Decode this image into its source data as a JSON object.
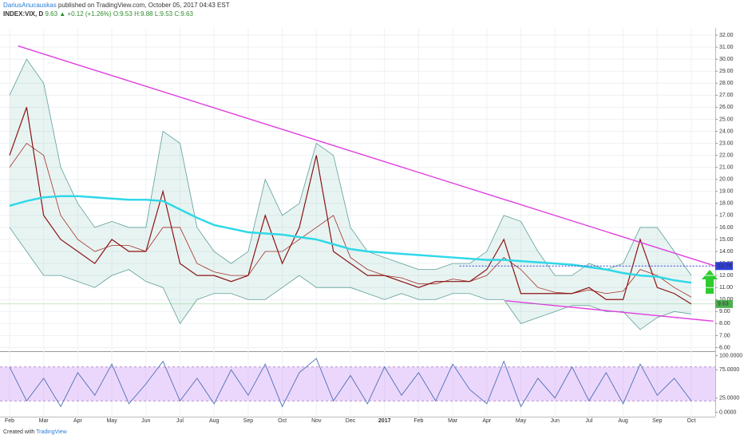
{
  "header": {
    "author": "DariusAnucauskas",
    "published": " published on TradingView.com, October 05, 2017 04:43 EST",
    "symbol": "INDEX:VIX, D",
    "last": "9.63",
    "change": "▲ +0.12 (+1.26%)",
    "open": "O:9.53",
    "high": "H:9.88",
    "low": "L:9.53",
    "close": "C:9.63"
  },
  "footer": {
    "text": "Created with",
    "brand": "TradingView"
  },
  "chart_data": [
    {
      "type": "line",
      "categories": [
        "Feb",
        null,
        "Mar",
        null,
        "Apr",
        null,
        "May",
        null,
        "Jun",
        null,
        "Jul",
        null,
        "Aug",
        null,
        "Sep",
        null,
        "Oct",
        null,
        "Nov",
        null,
        "Dec",
        null,
        "2017",
        null,
        "Feb",
        null,
        "Mar",
        null,
        "Apr",
        null,
        "May",
        null,
        "Jun",
        null,
        "Jul",
        null,
        "Aug",
        null,
        "Sep",
        null,
        "Oct"
      ],
      "ylim": [
        5.7,
        32.6
      ],
      "yticks": [
        {
          "value": 6,
          "label": "6.00"
        },
        {
          "value": 7,
          "label": "7.00"
        },
        {
          "value": 8,
          "label": "8.00"
        },
        {
          "value": 9,
          "label": "9.00"
        },
        {
          "value": 10,
          "label": "10.00"
        },
        {
          "value": 11,
          "label": "11.00"
        },
        {
          "value": 12,
          "label": "12.00"
        },
        {
          "value": 13,
          "label": "13.00"
        },
        {
          "value": 14,
          "label": "14.00"
        },
        {
          "value": 15,
          "label": "15.00"
        },
        {
          "value": 16,
          "label": "16.00"
        },
        {
          "value": 17,
          "label": "17.00"
        },
        {
          "value": 18,
          "label": "18.00"
        },
        {
          "value": 19,
          "label": "19.00"
        },
        {
          "value": 20,
          "label": "20.00"
        },
        {
          "value": 21,
          "label": "21.00"
        },
        {
          "value": 22,
          "label": "22.00"
        },
        {
          "value": 23,
          "label": "23.00"
        },
        {
          "value": 24,
          "label": "24.00"
        },
        {
          "value": 25,
          "label": "25.00"
        },
        {
          "value": 26,
          "label": "26.00"
        },
        {
          "value": 27,
          "label": "27.00"
        },
        {
          "value": 28,
          "label": "28.00"
        },
        {
          "value": 29,
          "label": "29.00"
        },
        {
          "value": 30,
          "label": "30.00"
        },
        {
          "value": 31,
          "label": "31.00"
        },
        {
          "value": 32,
          "label": "32.00"
        }
      ],
      "grid": true,
      "bands": {
        "color": "#5e9f9a",
        "fill": "rgba(110,185,175,0.16)",
        "upper": [
          27,
          30,
          28,
          21,
          18,
          16,
          16.5,
          16,
          16,
          24,
          23,
          16,
          14,
          13,
          14,
          20,
          17,
          18,
          23,
          22,
          16,
          14,
          13.5,
          13,
          12.5,
          12.5,
          13,
          13,
          14,
          17,
          16.5,
          14,
          12,
          12,
          13,
          12.5,
          13,
          16,
          16,
          14,
          12
        ],
        "lower": [
          16,
          14,
          12,
          12,
          11.5,
          11,
          12,
          12.5,
          11.5,
          11,
          8,
          10,
          10.5,
          10.5,
          10,
          10,
          11,
          12,
          11,
          11,
          11,
          10.5,
          10,
          10.5,
          10,
          10,
          10.5,
          10.5,
          10,
          10,
          8,
          8.5,
          9,
          9.5,
          9.5,
          9,
          9,
          7.5,
          8.5,
          9,
          8.8
        ]
      },
      "series": [
        {
          "color": "#a4302a",
          "width": 0.8,
          "values": [
            21,
            23,
            22,
            17,
            15,
            14,
            14.5,
            14.5,
            14,
            16,
            16,
            13,
            12.3,
            12,
            12,
            14,
            14,
            15,
            16,
            17,
            13.5,
            12.5,
            12,
            11.8,
            11.3,
            11.3,
            11.7,
            11.5,
            12,
            13.5,
            12.5,
            11,
            10.6,
            10.5,
            10.8,
            10.5,
            10.7,
            12.5,
            12,
            11,
            10.2
          ]
        },
        {
          "color": "#8b1414",
          "width": 1.2,
          "values": [
            22,
            26,
            17,
            15,
            14,
            13,
            15,
            14,
            14,
            19,
            13,
            12,
            12,
            11.5,
            12,
            17,
            13,
            16,
            22,
            14,
            13,
            12,
            12,
            11.5,
            11,
            11.5,
            11.5,
            11.5,
            12.5,
            15,
            10.5,
            10.5,
            10.5,
            10.5,
            11,
            10,
            10,
            15,
            11,
            10.5,
            9.63
          ]
        },
        {
          "color": "#2fd8e8",
          "width": 2.5,
          "values": [
            17.8,
            18.2,
            18.5,
            18.6,
            18.6,
            18.5,
            18.4,
            18.3,
            18.3,
            18.2,
            17.5,
            16.8,
            16.2,
            15.9,
            15.6,
            15.5,
            15.4,
            15.2,
            15.0,
            14.6,
            14.2,
            14.0,
            13.9,
            13.8,
            13.7,
            13.6,
            13.5,
            13.4,
            13.3,
            13.3,
            13.2,
            13.1,
            13.0,
            12.9,
            12.7,
            12.5,
            12.2,
            12.0,
            11.9,
            11.6,
            11.4
          ]
        }
      ],
      "trendlines": [
        {
          "color": "#e040e0",
          "dash": false,
          "x": [
            0.5,
            41.4
          ],
          "values": [
            31.1,
            12.79
          ]
        },
        {
          "color": "#e040e0",
          "dash": false,
          "x": [
            29.1,
            41.3
          ],
          "values": [
            9.9,
            8.2
          ]
        },
        {
          "color": "#2f3fd8",
          "dash": true,
          "x": [
            26.4,
            41.5
          ],
          "values": [
            12.79,
            12.79
          ]
        }
      ],
      "markers": [
        12.79,
        9.63
      ],
      "marker_colors": [
        "#2f3fd8",
        "#4caf50"
      ]
    },
    {
      "type": "oscillator",
      "ylim": [
        -5,
        105
      ],
      "yticks": [
        {
          "value": 100,
          "label": "100.0000"
        },
        {
          "value": 75,
          "label": "75.0000"
        },
        {
          "value": 25,
          "label": "25.0000"
        },
        {
          "value": 0,
          "label": "0.0000"
        }
      ],
      "band": [
        20,
        80
      ],
      "band_fill": "rgba(200,140,245,0.35)",
      "band_line": "#a070c0",
      "series": [
        {
          "color": "#4a6fb5",
          "width": 0.9,
          "values": [
            80,
            20,
            60,
            10,
            70,
            30,
            85,
            15,
            50,
            90,
            20,
            60,
            15,
            75,
            30,
            85,
            10,
            70,
            95,
            20,
            65,
            15,
            80,
            30,
            70,
            20,
            85,
            40,
            15,
            90,
            10,
            60,
            25,
            80,
            20,
            70,
            15,
            85,
            30,
            60,
            20
          ]
        }
      ]
    }
  ]
}
